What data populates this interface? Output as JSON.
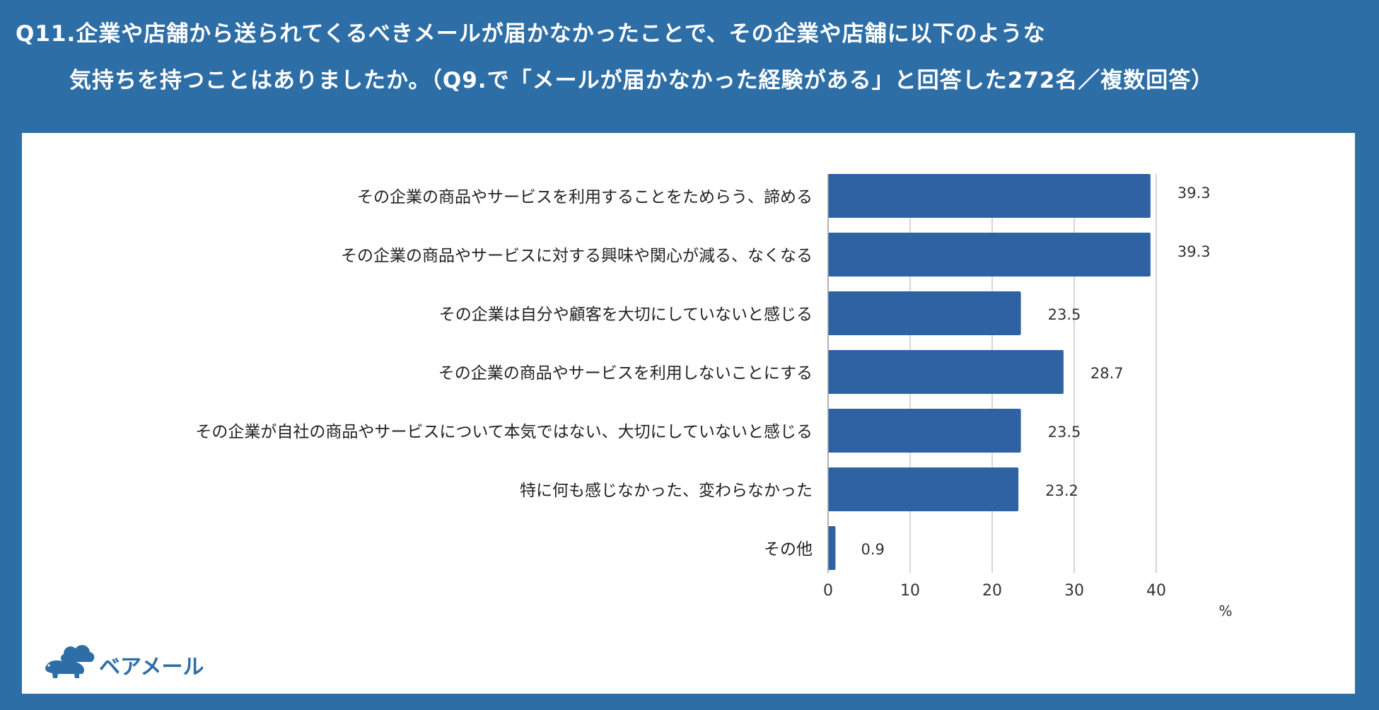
{
  "title": {
    "line1": "Q11.企業や店舗から送られてくるべきメールが届かなかったことで、その企業や店舗に以下のような",
    "line2": "気持ちを持つことはありましたか。（Q9.で「メールが届かなかった経験がある」と回答した272名／複数回答）"
  },
  "brand": {
    "name": "ベアメール",
    "icon": "bear-cloud-logo-icon",
    "color": "#2e6ea6"
  },
  "colors": {
    "background": "#2e6ea6",
    "panel": "#ffffff",
    "bar": "#2e62a3",
    "grid": "#c8c8c8"
  },
  "chart_data": {
    "type": "bar",
    "orientation": "horizontal",
    "categories": [
      "その企業の商品やサービスを利用することをためらう、諦める",
      "その企業の商品やサービスに対する興味や関心が減る、なくなる",
      "その企業は自分や顧客を大切にしていないと感じる",
      "その企業の商品やサービスを利用しないことにする",
      "その企業が自社の商品やサービスについて本気ではない、大切にしていないと感じる",
      "特に何も感じなかった、変わらなかった",
      "その他"
    ],
    "values": [
      39.3,
      39.3,
      23.5,
      28.7,
      23.5,
      23.2,
      0.9
    ],
    "value_labels": [
      "39.3",
      "39.3",
      "23.5",
      "28.7",
      "23.5",
      "23.2",
      "0.9"
    ],
    "xlim": [
      0,
      40
    ],
    "xticks": [
      "0",
      "10",
      "20",
      "30",
      "40"
    ],
    "xunit": "%",
    "grid": true
  }
}
